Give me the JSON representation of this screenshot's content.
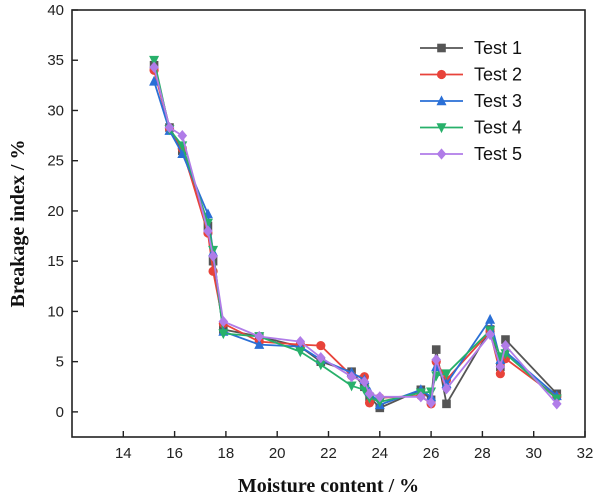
{
  "chart_data": {
    "type": "line",
    "title": "",
    "xlabel": "Moisture content / %",
    "ylabel": "Breakage index / %",
    "xlim": [
      12,
      32
    ],
    "ylim": [
      -2.5,
      40
    ],
    "xticks": [
      14,
      16,
      18,
      20,
      22,
      24,
      26,
      28,
      30,
      32
    ],
    "yticks": [
      0,
      5,
      10,
      15,
      20,
      25,
      30,
      35,
      40
    ],
    "grid": false,
    "legend_position": "top-right",
    "series": [
      {
        "name": "Test 1",
        "color": "#555555",
        "marker": "square",
        "x": [
          15.2,
          15.8,
          16.3,
          17.3,
          17.5,
          17.9,
          19.3,
          20.9,
          21.7,
          22.9,
          23.4,
          23.6,
          24.0,
          25.6,
          26.0,
          26.2,
          26.6,
          28.3,
          28.7,
          28.9,
          30.9
        ],
        "y": [
          34.5,
          28.3,
          26.0,
          18.5,
          15.0,
          8.2,
          7.5,
          6.5,
          5.0,
          4.0,
          2.5,
          1.5,
          0.4,
          2.2,
          1.2,
          6.2,
          0.8,
          8.2,
          4.5,
          7.2,
          1.8
        ]
      },
      {
        "name": "Test 2",
        "color": "#e8433a",
        "marker": "circle",
        "x": [
          15.2,
          15.8,
          16.3,
          17.3,
          17.5,
          17.9,
          19.3,
          20.9,
          21.7,
          22.9,
          23.4,
          23.6,
          24.0,
          25.6,
          26.0,
          26.2,
          26.6,
          28.3,
          28.7,
          28.9,
          30.9
        ],
        "y": [
          34.0,
          28.2,
          26.2,
          17.8,
          14.0,
          8.8,
          7.0,
          6.7,
          6.6,
          3.6,
          3.5,
          0.9,
          1.4,
          1.6,
          0.8,
          5.0,
          3.2,
          8.0,
          3.8,
          5.3,
          1.5
        ]
      },
      {
        "name": "Test 3",
        "color": "#2a6fd6",
        "marker": "triangle-up",
        "x": [
          15.2,
          15.8,
          16.3,
          17.3,
          17.5,
          17.9,
          19.3,
          20.9,
          21.7,
          22.9,
          23.4,
          23.6,
          24.0,
          25.6,
          26.0,
          26.2,
          26.6,
          28.3,
          28.7,
          28.9,
          30.9
        ],
        "y": [
          32.9,
          28.0,
          25.7,
          19.7,
          15.9,
          8.0,
          6.7,
          6.5,
          5.2,
          3.9,
          3.2,
          2.0,
          0.7,
          2.2,
          1.5,
          4.5,
          2.8,
          9.2,
          5.2,
          6.0,
          1.6
        ]
      },
      {
        "name": "Test 4",
        "color": "#27b06a",
        "marker": "triangle-down",
        "x": [
          15.2,
          15.8,
          16.3,
          17.3,
          17.5,
          17.9,
          19.3,
          20.9,
          21.7,
          22.9,
          23.4,
          23.6,
          24.0,
          25.6,
          26.0,
          26.2,
          26.6,
          28.3,
          28.7,
          28.9,
          30.9
        ],
        "y": [
          35.0,
          28.1,
          26.5,
          18.8,
          16.1,
          7.8,
          7.5,
          6.0,
          4.7,
          2.6,
          2.2,
          1.4,
          1.0,
          1.9,
          2.0,
          3.6,
          3.8,
          8.1,
          5.5,
          5.8,
          1.3
        ]
      },
      {
        "name": "Test 5",
        "color": "#b07ce8",
        "marker": "diamond",
        "x": [
          15.2,
          15.8,
          16.3,
          17.3,
          17.5,
          17.9,
          19.3,
          20.9,
          21.7,
          22.9,
          23.4,
          23.6,
          24.0,
          25.6,
          26.0,
          26.2,
          26.6,
          28.3,
          28.7,
          28.9,
          30.9
        ],
        "y": [
          34.3,
          28.3,
          27.5,
          18.0,
          15.5,
          9.0,
          7.5,
          7.0,
          5.4,
          3.5,
          3.0,
          1.8,
          1.5,
          1.5,
          0.9,
          5.2,
          2.3,
          7.7,
          4.5,
          6.6,
          0.8
        ]
      }
    ]
  }
}
